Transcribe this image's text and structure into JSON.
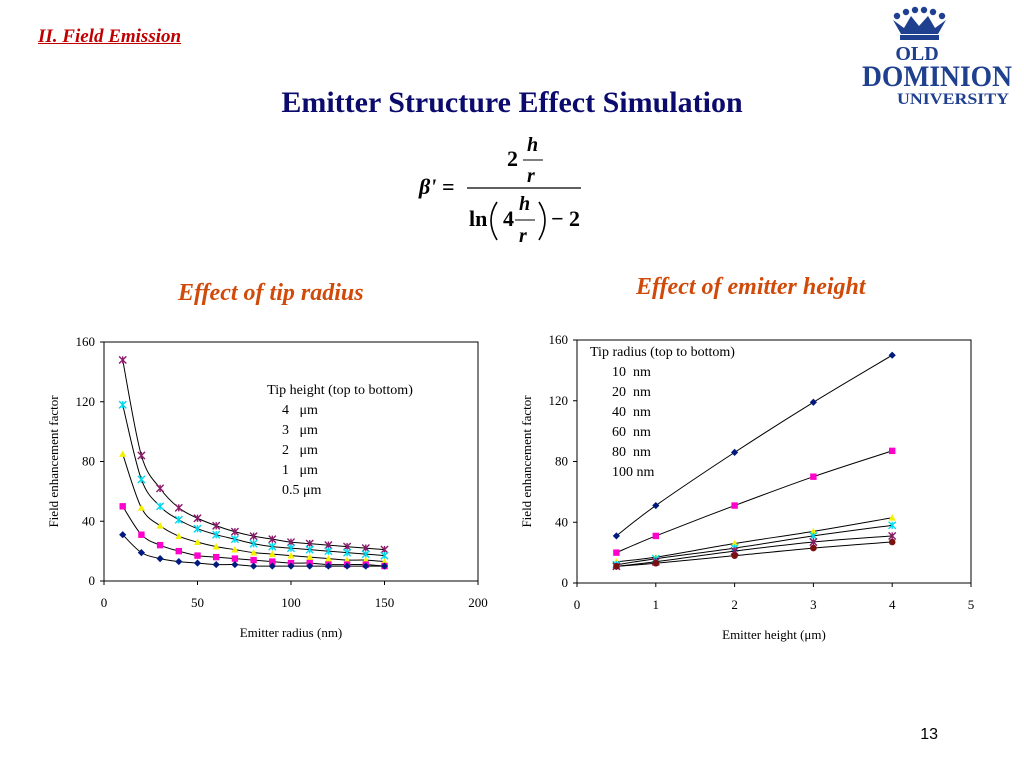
{
  "header": {
    "section": "II. Field Emission",
    "title": "Emitter Structure Effect Simulation"
  },
  "logo": {
    "line1": "OLD",
    "line2": "DOMINION",
    "line3": "UNIVERSITY",
    "color": "#1f3f8f"
  },
  "formula": {
    "lhs": "β' =",
    "num_coef": "2",
    "h": "h",
    "r": "r",
    "ln": "ln",
    "den_coef": "4",
    "minus_two": "− 2"
  },
  "subtitles": {
    "left": "Effect of tip radius",
    "right": "Effect of emitter height"
  },
  "page_number": "13",
  "chart_data": [
    {
      "type": "line",
      "xlabel": "Emitter radius (nm)",
      "ylabel": "Field enhancement factor",
      "xlim": [
        0,
        200
      ],
      "ylim": [
        0,
        160
      ],
      "xticks": [
        0,
        50,
        100,
        150,
        200
      ],
      "yticks": [
        0,
        40,
        80,
        120,
        160
      ],
      "grid": false,
      "legend": {
        "title": "Tip height (top to bottom)",
        "entries": [
          "4   μm",
          "3   μm",
          "2   μm",
          "1   μm",
          "0.5 μm"
        ],
        "placement": "top-right"
      },
      "x": [
        10,
        20,
        30,
        40,
        50,
        60,
        70,
        80,
        90,
        100,
        110,
        120,
        130,
        140,
        150
      ],
      "series": [
        {
          "color": "#8b1a6b",
          "marker": "star",
          "values": [
            148,
            84,
            62,
            49,
            42,
            37,
            33,
            30,
            28,
            26,
            25,
            24,
            23,
            22,
            21
          ]
        },
        {
          "color": "#00d8f0",
          "marker": "star",
          "values": [
            118,
            68,
            50,
            41,
            35,
            31,
            28,
            25,
            23,
            22,
            21,
            20,
            19,
            18,
            17
          ]
        },
        {
          "color": "#f4f000",
          "marker": "triangle",
          "values": [
            85,
            49,
            37,
            30,
            26,
            23,
            21,
            19,
            18,
            17,
            16,
            15,
            14,
            14,
            13
          ]
        },
        {
          "color": "#ff00cc",
          "marker": "square",
          "values": [
            50,
            31,
            24,
            20,
            17,
            16,
            15,
            14,
            13,
            12,
            12,
            11,
            11,
            11,
            10
          ]
        },
        {
          "color": "#001a80",
          "marker": "diamond",
          "values": [
            31,
            19,
            15,
            13,
            12,
            11,
            11,
            10,
            10,
            10,
            10,
            10,
            10,
            10,
            10
          ]
        }
      ]
    },
    {
      "type": "line",
      "xlabel": "Emitter height (μm)",
      "ylabel": "Field enhancement factor",
      "xlim": [
        0,
        5
      ],
      "ylim": [
        0,
        160
      ],
      "xticks": [
        0,
        1,
        2,
        3,
        4,
        5
      ],
      "yticks": [
        0,
        40,
        80,
        120,
        160
      ],
      "grid": false,
      "legend": {
        "title": "Tip radius (top to bottom)",
        "entries": [
          "10  nm",
          "20  nm",
          "40  nm",
          "60  nm",
          "80  nm",
          "100 nm"
        ],
        "placement": "top-left"
      },
      "x": [
        0.5,
        1,
        2,
        3,
        4
      ],
      "series": [
        {
          "color": "#001a80",
          "marker": "diamond",
          "values": [
            31,
            51,
            86,
            119,
            150
          ]
        },
        {
          "color": "#ff00cc",
          "marker": "square",
          "values": [
            20,
            31,
            51,
            70,
            87
          ]
        },
        {
          "color": "#f4f000",
          "marker": "triangle",
          "values": [
            14,
            17,
            26,
            34,
            43
          ]
        },
        {
          "color": "#00d8f0",
          "marker": "star",
          "values": [
            12,
            16,
            23,
            31,
            38
          ]
        },
        {
          "color": "#8b1a6b",
          "marker": "star",
          "values": [
            11,
            14,
            21,
            27,
            31
          ]
        },
        {
          "color": "#7a1010",
          "marker": "circle",
          "values": [
            11,
            13,
            18,
            23,
            27
          ]
        }
      ]
    }
  ]
}
